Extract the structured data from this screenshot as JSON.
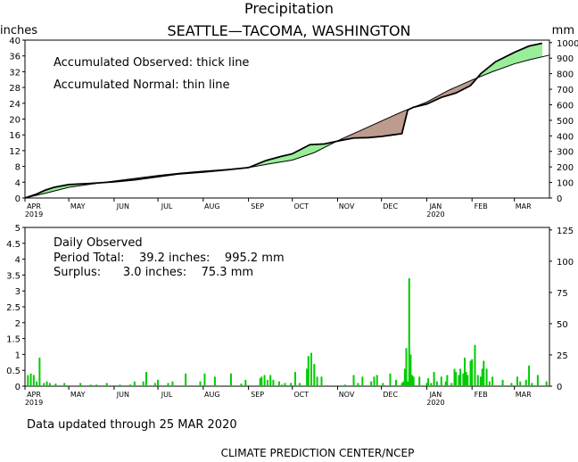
{
  "header": {
    "title": "Precipitation",
    "subtitle": "SEATTLE—TACOMA, WASHINGTON",
    "left_unit": "inches",
    "right_unit": "mm"
  },
  "footer": {
    "updated": "Data updated through 25 MAR 2020",
    "credit": "CLIMATE PREDICTION CENTER/NCEP"
  },
  "colors": {
    "surplus_fill": "#98ee98",
    "deficit_fill": "#bc9a8e",
    "bar": "#00cc00",
    "line": "#000000"
  },
  "chart_data": [
    {
      "type": "area",
      "name": "accumulated",
      "annotations": [
        "Accumulated Observed: thick line",
        "Accumulated Normal: thin line"
      ],
      "x_unit": "days since 1 APR 2019",
      "xlim": [
        0,
        359
      ],
      "x_tick_labels": [
        "APR",
        "MAY",
        "JUN",
        "JUL",
        "AUG",
        "SEP",
        "OCT",
        "NOV",
        "DEC",
        "JAN",
        "FEB",
        "MAR"
      ],
      "x_tick_days": [
        0,
        30,
        61,
        91,
        122,
        153,
        183,
        214,
        244,
        275,
        306,
        335
      ],
      "x_year_labels": [
        {
          "day": 0,
          "text": "2019"
        },
        {
          "day": 275,
          "text": "2020"
        }
      ],
      "ylabel": "inches",
      "ylim": [
        0,
        40
      ],
      "y_ticks": [
        0,
        4,
        8,
        12,
        16,
        20,
        24,
        28,
        32,
        36,
        40
      ],
      "y2label": "mm",
      "y2lim": [
        0,
        1016
      ],
      "y2_ticks": [
        0,
        100,
        200,
        300,
        400,
        500,
        600,
        700,
        800,
        900,
        1000
      ],
      "grid": false,
      "series": [
        {
          "name": "Accumulated Observed",
          "style": "thick",
          "x": [
            0,
            8,
            14,
            20,
            30,
            45,
            61,
            75,
            91,
            105,
            122,
            140,
            153,
            165,
            175,
            183,
            195,
            205,
            215,
            225,
            235,
            244,
            252,
            258,
            262,
            266,
            275,
            285,
            295,
            305,
            312,
            322,
            335,
            345,
            354
          ],
          "y": [
            0,
            1.0,
            2.0,
            2.7,
            3.4,
            3.7,
            4.1,
            4.6,
            5.4,
            6.1,
            6.6,
            7.2,
            7.7,
            9.5,
            10.5,
            11.2,
            13.5,
            13.7,
            14.5,
            15.2,
            15.3,
            15.6,
            16.0,
            16.3,
            22.3,
            23.0,
            23.8,
            25.5,
            26.6,
            28.5,
            31.5,
            34.5,
            36.9,
            38.5,
            39.2
          ]
        },
        {
          "name": "Accumulated Normal",
          "style": "thin",
          "x": [
            0,
            15,
            30,
            45,
            61,
            76,
            91,
            106,
            122,
            137,
            153,
            168,
            183,
            198,
            214,
            229,
            244,
            259,
            275,
            290,
            306,
            320,
            335,
            345,
            359
          ],
          "y": [
            0,
            1.3,
            2.7,
            3.5,
            4.3,
            5.0,
            5.7,
            6.3,
            6.8,
            7.2,
            7.7,
            8.7,
            9.6,
            11.5,
            14.5,
            17.0,
            19.5,
            22.0,
            24.3,
            27.3,
            29.9,
            32.0,
            34.0,
            35.0,
            36.2
          ]
        }
      ]
    },
    {
      "type": "bar",
      "name": "daily",
      "annotations": [
        "Daily Observed",
        "Period Total:    39.2 inches:    995.2 mm",
        "Surplus:      3.0 inches:    75.3 mm"
      ],
      "x_unit": "days since 1 APR 2019",
      "xlim": [
        0,
        359
      ],
      "x_tick_labels": [
        "APR",
        "MAY",
        "JUN",
        "JUL",
        "AUG",
        "SEP",
        "OCT",
        "NOV",
        "DEC",
        "JAN",
        "FEB",
        "MAR"
      ],
      "x_tick_days": [
        0,
        30,
        61,
        91,
        122,
        153,
        183,
        214,
        244,
        275,
        306,
        335
      ],
      "x_year_labels": [
        {
          "day": 0,
          "text": "2019"
        },
        {
          "day": 275,
          "text": "2020"
        }
      ],
      "ylabel": "inches",
      "ylim": [
        0,
        5
      ],
      "y_ticks": [
        0,
        0.5,
        1,
        1.5,
        2,
        2.5,
        3,
        3.5,
        4,
        4.5,
        5
      ],
      "y2label": "mm",
      "y2lim": [
        0,
        127
      ],
      "y2_ticks": [
        0,
        25,
        50,
        75,
        100,
        125
      ],
      "grid": false,
      "series": [
        {
          "name": "Daily Observed",
          "x": [
            2,
            4,
            6,
            8,
            10,
            13,
            15,
            17,
            21,
            27,
            38,
            45,
            49,
            56,
            65,
            72,
            75,
            81,
            83,
            89,
            91,
            98,
            101,
            110,
            120,
            123,
            130,
            141,
            148,
            151,
            161,
            162,
            164,
            166,
            168,
            170,
            174,
            176,
            178,
            182,
            185,
            188,
            193,
            194,
            196,
            198,
            200,
            203,
            219,
            225,
            228,
            231,
            237,
            239,
            241,
            245,
            250,
            254,
            258,
            259,
            260,
            261,
            262,
            263,
            264,
            265,
            266,
            270,
            275,
            276,
            278,
            280,
            282,
            285,
            288,
            289,
            292,
            294,
            295,
            297,
            298,
            300,
            301,
            302,
            303,
            305,
            306,
            308,
            310,
            312,
            313,
            314,
            316,
            318,
            320,
            327,
            333,
            337,
            339,
            343,
            345,
            347,
            351,
            357
          ],
          "y": [
            0.35,
            0.4,
            0.35,
            0.15,
            0.9,
            0.1,
            0.15,
            0.1,
            0.08,
            0.1,
            0.1,
            0.05,
            0.05,
            0.1,
            0.05,
            0.05,
            0.15,
            0.15,
            0.45,
            0.1,
            0.2,
            0.1,
            0.15,
            0.4,
            0.15,
            0.4,
            0.3,
            0.4,
            0.08,
            0.2,
            0.25,
            0.3,
            0.35,
            0.2,
            0.35,
            0.2,
            0.15,
            0.05,
            0.1,
            0.1,
            0.45,
            0.1,
            0.55,
            0.95,
            1.05,
            0.7,
            0.3,
            0.3,
            0.05,
            0.35,
            0.1,
            0.3,
            0.15,
            0.3,
            0.35,
            0.1,
            0.4,
            0.2,
            0.1,
            0.15,
            0.55,
            1.2,
            0.15,
            3.4,
            1.0,
            0.35,
            0.3,
            0.3,
            0.1,
            0.25,
            0.1,
            0.45,
            0.15,
            0.3,
            0.15,
            0.35,
            0.1,
            0.55,
            0.45,
            0.35,
            0.55,
            0.4,
            0.9,
            0.45,
            0.35,
            0.8,
            0.85,
            1.3,
            0.35,
            0.3,
            0.55,
            0.8,
            0.55,
            0.15,
            0.3,
            0.2,
            0.1,
            0.3,
            0.15,
            0.2,
            0.65,
            0.1,
            0.35,
            0.15
          ]
        }
      ]
    }
  ]
}
